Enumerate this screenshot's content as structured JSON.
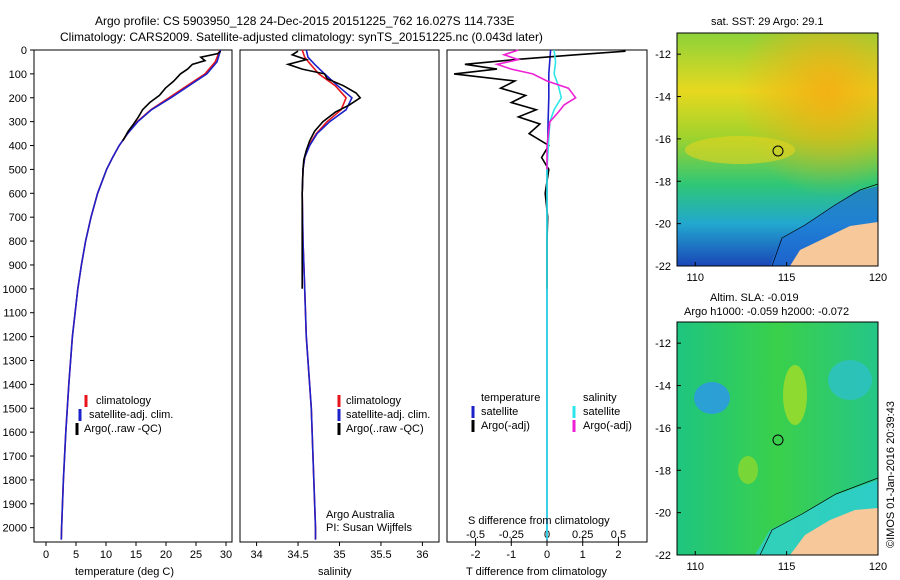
{
  "header": {
    "line1": "Argo profile: CS 5903950_128 24-Dec-2015 20151225_762 16.027S 114.733E",
    "line2": "Climatology: CARS2009. Satellite-adjusted climatology: synTS_20151225.nc (0.043d later)"
  },
  "colors": {
    "climatology": "#e8141b",
    "satellite_adj": "#1c21c9",
    "argo": "#000000",
    "satellite_sal": "#2ee6ea",
    "argo_sal": "#ee22d4",
    "land": "#f7c89a"
  },
  "panels": {
    "temperature": {
      "xlabel": "temperature (deg C)",
      "xticks": [
        "0",
        "5",
        "10",
        "15",
        "20",
        "25",
        "30"
      ],
      "legend": [
        "climatology",
        "satellite-adj. clim.",
        "Argo(..raw -QC)"
      ]
    },
    "salinity": {
      "xlabel": "salinity",
      "xticks": [
        "34",
        "34.5",
        "35",
        "35.5",
        "36"
      ],
      "legend": [
        "climatology",
        "satellite-adj. clim.",
        "Argo(..raw -QC)"
      ],
      "note1": "Argo Australia",
      "note2": "PI: Susan Wijffels"
    },
    "difference": {
      "xlabel": "T difference from climatology",
      "toplabel": "S difference from climatology",
      "s_ticks": [
        "-0.5",
        "-0.25",
        "0",
        "0.25",
        "0.5"
      ],
      "t_ticks": [
        "-2",
        "-1",
        "0",
        "1",
        "2"
      ],
      "legend_left_title": "temperature",
      "legend_right_title": "salinity",
      "legend_left": [
        "satellite",
        "Argo(-adj)"
      ],
      "legend_right": [
        "satellite",
        "Argo(-adj)"
      ]
    },
    "depth_ticks": [
      "0",
      "100",
      "200",
      "300",
      "400",
      "500",
      "600",
      "700",
      "800",
      "900",
      "1000",
      "1100",
      "1200",
      "1300",
      "1400",
      "1500",
      "1600",
      "1700",
      "1800",
      "1900",
      "2000"
    ]
  },
  "maps": {
    "sst": {
      "title": "sat. SST: 29 Argo: 29.1",
      "yticks": [
        "-12",
        "-14",
        "-16",
        "-18",
        "-20",
        "-22"
      ],
      "xticks": [
        "110",
        "115",
        "120"
      ]
    },
    "sla": {
      "title1": "Altim. SLA: -0.019",
      "title2": "Argo h1000: -0.059 h2000: -0.072",
      "yticks": [
        "-12",
        "-14",
        "-16",
        "-18",
        "-20",
        "-22"
      ],
      "xticks": [
        "110",
        "115",
        "120"
      ]
    }
  },
  "credit": "©IMOS 01-Jan-2016 20:39:43",
  "chart_data": [
    {
      "type": "line",
      "xlabel": "temperature (deg C)",
      "ylabel": "",
      "xlim": [
        -2,
        31
      ],
      "ylim": [
        2060,
        0
      ],
      "depth_axis_reversed": true,
      "series": [
        {
          "name": "climatology",
          "depth": [
            0,
            50,
            100,
            150,
            200,
            250,
            300,
            350,
            400,
            450,
            500,
            600,
            700,
            800,
            900,
            1000,
            1200,
            1400,
            1600,
            1800,
            2000,
            2050
          ],
          "values": [
            29,
            28.2,
            26.5,
            23.5,
            20.5,
            17.5,
            15.2,
            13.6,
            12.2,
            11.1,
            10.1,
            8.6,
            7.5,
            6.6,
            5.9,
            5.3,
            4.4,
            3.8,
            3.3,
            2.9,
            2.6,
            2.55
          ]
        },
        {
          "name": "satellite-adj. clim.",
          "depth": [
            0,
            50,
            100,
            150,
            200,
            250,
            300,
            350,
            400,
            450,
            500,
            600,
            700,
            800,
            900,
            1000,
            1200,
            1400,
            1600,
            1800,
            2000,
            2050
          ],
          "values": [
            29.1,
            28.5,
            26.8,
            23.8,
            20.8,
            17.6,
            15.3,
            13.6,
            12.2,
            11.1,
            10.1,
            8.6,
            7.5,
            6.6,
            5.9,
            5.3,
            4.4,
            3.8,
            3.3,
            2.9,
            2.6,
            2.55
          ]
        },
        {
          "name": "Argo(..raw -QC)",
          "depth": [
            5,
            15,
            30,
            45,
            60,
            80,
            100,
            130,
            160,
            190,
            220,
            250,
            280,
            310,
            340,
            380
          ],
          "values": [
            29.1,
            28.6,
            25.8,
            26.5,
            24.4,
            23.6,
            22.4,
            21.3,
            19.9,
            18.9,
            17.3,
            16.1,
            15.4,
            14.6,
            13.7,
            12.8
          ]
        }
      ]
    },
    {
      "type": "line",
      "xlabel": "salinity",
      "ylabel": "",
      "xlim": [
        33.8,
        36.2
      ],
      "ylim": [
        2060,
        0
      ],
      "depth_axis_reversed": true,
      "series": [
        {
          "name": "climatology",
          "depth": [
            0,
            30,
            60,
            100,
            150,
            200,
            250,
            300,
            350,
            400,
            450,
            500,
            600,
            800,
            1000,
            1200,
            1500,
            2000,
            2050
          ],
          "values": [
            34.55,
            34.58,
            34.65,
            34.75,
            34.95,
            35.08,
            35.02,
            34.85,
            34.72,
            34.63,
            34.58,
            34.56,
            34.55,
            34.56,
            34.58,
            34.6,
            34.66,
            34.71,
            34.71
          ]
        },
        {
          "name": "satellite-adj. clim.",
          "depth": [
            0,
            30,
            60,
            100,
            150,
            200,
            250,
            300,
            350,
            400,
            450,
            500,
            600,
            800,
            1000,
            1200,
            1500,
            2000,
            2050
          ],
          "values": [
            34.6,
            34.62,
            34.7,
            34.82,
            34.98,
            35.15,
            35.08,
            34.88,
            34.73,
            34.64,
            34.58,
            34.56,
            34.55,
            34.56,
            34.58,
            34.6,
            34.66,
            34.71,
            34.71
          ]
        },
        {
          "name": "Argo(..raw -QC)",
          "depth": [
            5,
            20,
            40,
            60,
            80,
            100,
            120,
            150,
            180,
            200,
            230,
            260,
            300,
            340,
            380,
            420,
            460,
            500,
            600,
            700,
            800,
            900,
            1000
          ],
          "values": [
            34.5,
            34.43,
            34.6,
            34.38,
            34.55,
            34.82,
            34.85,
            35.05,
            35.2,
            35.25,
            35.12,
            34.95,
            34.8,
            34.7,
            34.64,
            34.6,
            34.57,
            34.56,
            34.55,
            34.55,
            34.55,
            34.55,
            34.55
          ]
        }
      ]
    },
    {
      "type": "line",
      "xlabel": "T difference from climatology",
      "x2label": "S difference from climatology",
      "xlim": [
        -2.8,
        2.8
      ],
      "ylim": [
        2060,
        0
      ],
      "depth_axis_reversed": true,
      "series": [
        {
          "name": "temperature satellite",
          "depth": [
            0,
            100,
            200,
            300,
            400,
            500,
            700,
            1000,
            1500,
            2050
          ],
          "values": [
            0.1,
            0.05,
            0.05,
            0.03,
            0.02,
            0,
            0,
            0,
            0,
            0
          ]
        },
        {
          "name": "temperature Argo(-adj)",
          "depth": [
            5,
            20,
            40,
            60,
            80,
            100,
            130,
            160,
            190,
            220,
            250,
            280,
            310,
            350,
            400,
            450,
            500,
            600,
            700,
            800,
            900,
            1000
          ],
          "values": [
            2.2,
            0.8,
            -0.9,
            -2.3,
            -1.4,
            -2.6,
            -0.9,
            -1.3,
            -0.6,
            -1.0,
            -0.3,
            -0.8,
            -0.2,
            -0.5,
            0.05,
            -0.15,
            0.05,
            -0.05,
            0.02,
            0,
            0,
            0
          ]
        },
        {
          "name": "salinity satellite",
          "depth": [
            0,
            50,
            100,
            150,
            200,
            250,
            300,
            400,
            500,
            700,
            1000,
            1500,
            2050
          ],
          "values": [
            0.05,
            0.06,
            0.05,
            0.08,
            0.1,
            0.05,
            0.02,
            0.01,
            0,
            0,
            0,
            0,
            0
          ]
        },
        {
          "name": "salinity Argo(-adj)",
          "depth": [
            0,
            20,
            40,
            60,
            80,
            100,
            130,
            160,
            200,
            230,
            260,
            300,
            350,
            400,
            450,
            500
          ],
          "values": [
            -0.2,
            -0.3,
            -0.2,
            -0.35,
            -0.25,
            -0.1,
            0.0,
            0.15,
            0.2,
            0.12,
            0.08,
            0.02,
            0.01,
            0.0,
            0.0,
            0.0
          ]
        }
      ]
    }
  ]
}
